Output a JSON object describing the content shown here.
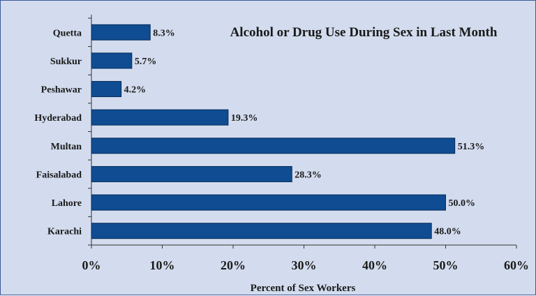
{
  "chart_data": {
    "type": "bar",
    "orientation": "horizontal",
    "title": "Alcohol or Drug Use During Sex in Last Month",
    "xlabel": "Percent of Sex Workers",
    "ylabel": "",
    "categories": [
      "Quetta",
      "Sukkur",
      "Peshawar",
      "Hyderabad",
      "Multan",
      "Faisalabad",
      "Lahore",
      "Karachi"
    ],
    "values": [
      8.3,
      5.7,
      4.2,
      19.3,
      51.3,
      28.3,
      50.0,
      48.0
    ],
    "value_labels": [
      "8.3%",
      "5.7%",
      "4.2%",
      "19.3%",
      "51.3%",
      "28.3%",
      "50.0%",
      "48.0%"
    ],
    "xlim": [
      0,
      60
    ],
    "x_ticks": [
      0,
      10,
      20,
      30,
      40,
      50,
      60
    ],
    "x_tick_labels": [
      "0%",
      "10%",
      "20%",
      "30%",
      "40%",
      "50%",
      "60%"
    ],
    "grid": false,
    "legend": "none",
    "colors": {
      "bar": "#0f4c91",
      "bar_edge": "#062d5c",
      "background": "#d3dcee",
      "border": "#3c5a9a",
      "axis": "#333333"
    }
  }
}
